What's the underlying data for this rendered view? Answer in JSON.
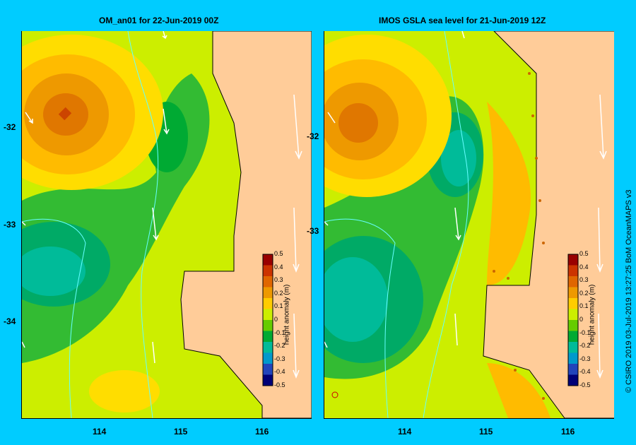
{
  "panels": [
    {
      "title": "OM_an01  for 22-Jun-2019 00Z"
    },
    {
      "title": "IMOS GSLA sea level  for 21-Jun-2019 12Z"
    }
  ],
  "y_ticks": [
    "-32",
    "-33",
    "-34"
  ],
  "x_ticks": [
    "114",
    "115",
    "116"
  ],
  "colorbar": {
    "title": "height anomaly (m)",
    "labels": [
      "0.5",
      "0.4",
      "0.3",
      "0.2",
      "0.1",
      "0",
      "-0.1",
      "-0.2",
      "-0.3",
      "-0.4",
      "-0.5"
    ],
    "colors": [
      "#990000",
      "#cc3300",
      "#e06600",
      "#ee9900",
      "#ffcc00",
      "#ccee00",
      "#66cc00",
      "#00aa33",
      "#00bb99",
      "#0099cc",
      "#2244bb",
      "#000077"
    ]
  },
  "credit": "© CSIRO 2019   03-Jul-2019 13:27:25 BoM OceanMAPS v3",
  "colors": {
    "background": "#00ccff",
    "land": "#ffcc99",
    "current_arrows": "#ffffff",
    "bathymetry": "#66ffff"
  }
}
